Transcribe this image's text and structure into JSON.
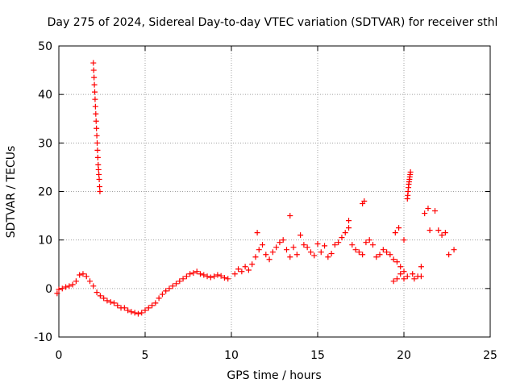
{
  "chart_data": {
    "type": "scatter",
    "title": "Day 275 of 2024, Sidereal Day-to-day VTEC variation (SDTVAR) for receiver sthl",
    "xlabel": "GPS time / hours",
    "ylabel": "SDTVAR / TECUs",
    "xlim": [
      0,
      25
    ],
    "ylim": [
      -10,
      50
    ],
    "xticks": [
      0,
      5,
      10,
      15,
      20,
      25
    ],
    "yticks": [
      -10,
      0,
      10,
      20,
      30,
      40,
      50
    ],
    "xtick_labels": [
      "0",
      "5",
      "10",
      "15",
      "20",
      "25"
    ],
    "ytick_labels": [
      "-10",
      "0",
      "10",
      "20",
      "30",
      "40",
      "50"
    ],
    "grid": true,
    "marker": "plus",
    "series_color": "#ff0000",
    "series": [
      {
        "name": "main",
        "x": [
          -0.1,
          0.0,
          0.2,
          0.4,
          0.6,
          0.8,
          1.0,
          1.2,
          1.4,
          1.6,
          1.8,
          2.0,
          2.2,
          2.4,
          2.6,
          2.8,
          3.0,
          3.2,
          3.4,
          3.6,
          3.8,
          4.0,
          4.2,
          4.4,
          4.6,
          4.8,
          5.0,
          5.2,
          5.4,
          5.6,
          5.8,
          6.0,
          6.2,
          6.4,
          6.6,
          6.8,
          7.0,
          7.2,
          7.4,
          7.6,
          7.8,
          8.0,
          8.2,
          8.4,
          8.6,
          8.8,
          9.0,
          9.2,
          9.4,
          9.6,
          9.8
        ],
        "y": [
          -1.0,
          -0.2,
          0.0,
          0.3,
          0.5,
          0.8,
          1.5,
          2.8,
          3.0,
          2.5,
          1.5,
          0.5,
          -0.8,
          -1.5,
          -2.0,
          -2.5,
          -2.8,
          -3.0,
          -3.5,
          -4.0,
          -4.0,
          -4.5,
          -4.8,
          -5.0,
          -5.2,
          -5.0,
          -4.5,
          -4.0,
          -3.5,
          -3.0,
          -2.0,
          -1.2,
          -0.5,
          0.0,
          0.5,
          1.0,
          1.5,
          2.0,
          2.5,
          3.0,
          3.2,
          3.5,
          3.0,
          2.8,
          2.5,
          2.3,
          2.5,
          2.8,
          2.6,
          2.2,
          2.0
        ]
      },
      {
        "name": "spike-early",
        "x": [
          2.0,
          2.02,
          2.04,
          2.06,
          2.08,
          2.1,
          2.12,
          2.14,
          2.16,
          2.18,
          2.2,
          2.22,
          2.24,
          2.26,
          2.28,
          2.3,
          2.32,
          2.34,
          2.36,
          2.38
        ],
        "y": [
          46.5,
          45,
          43.5,
          42,
          40.5,
          39,
          37.5,
          36,
          34.5,
          33,
          31.5,
          30,
          28.5,
          27,
          25.5,
          24.5,
          23.5,
          22.5,
          21,
          20
        ]
      },
      {
        "name": "cluster-10-15",
        "x": [
          10.2,
          10.4,
          10.6,
          10.8,
          11.0,
          11.2,
          11.4,
          11.6,
          11.8,
          12.0,
          12.2,
          12.4,
          12.6,
          12.8,
          13.0,
          13.2,
          13.4,
          13.6,
          13.8,
          14.0,
          14.2,
          14.4,
          14.6,
          14.8,
          15.0,
          15.2,
          15.4,
          15.6,
          15.8
        ],
        "y": [
          3.0,
          4.0,
          3.5,
          4.5,
          3.8,
          5.0,
          6.5,
          8.0,
          9.0,
          7.0,
          6.0,
          7.5,
          8.5,
          9.5,
          10.0,
          8.0,
          6.5,
          8.5,
          7.0,
          11.0,
          9.0,
          8.5,
          7.5,
          6.8,
          9.2,
          7.5,
          8.8,
          6.5,
          7.2
        ]
      },
      {
        "name": "cluster-15-20",
        "x": [
          16.0,
          16.2,
          16.4,
          16.6,
          16.8,
          17.0,
          17.2,
          17.4,
          17.6,
          17.8,
          18.0,
          18.2,
          18.4,
          18.6,
          18.8,
          19.0,
          19.2,
          19.4,
          19.6,
          19.8,
          20.0
        ],
        "y": [
          9.0,
          9.5,
          10.5,
          11.5,
          12.5,
          9.0,
          8.0,
          7.5,
          7.0,
          9.5,
          10.0,
          9.0,
          6.5,
          7.0,
          8.0,
          7.5,
          7.0,
          6.0,
          5.5,
          4.5,
          3.5
        ]
      },
      {
        "name": "scattered-late",
        "x": [
          11.5,
          13.4,
          16.8,
          17.6,
          17.7,
          19.5,
          19.7,
          20.0,
          20.5,
          20.8,
          21.0,
          21.2,
          21.4,
          21.5,
          21.8,
          22.0,
          22.2,
          22.4,
          22.6,
          22.9
        ],
        "y": [
          11.5,
          15.0,
          14.0,
          17.5,
          18.0,
          11.5,
          12.5,
          10.0,
          3.0,
          2.5,
          4.5,
          15.5,
          16.5,
          12.0,
          16.0,
          12.0,
          11.0,
          11.5,
          7.0,
          8.0
        ]
      },
      {
        "name": "spike-late",
        "x": [
          20.2,
          20.22,
          20.24,
          20.26,
          20.28,
          20.3,
          20.32,
          20.34,
          20.36,
          20.38
        ],
        "y": [
          18.5,
          19.2,
          20.0,
          20.8,
          21.5,
          22.0,
          22.5,
          23.0,
          23.5,
          24.0
        ]
      },
      {
        "name": "low-late",
        "x": [
          19.4,
          19.6,
          19.8,
          20.0,
          20.2,
          20.6,
          21.0
        ],
        "y": [
          1.5,
          2.0,
          3.0,
          2.0,
          2.5,
          2.0,
          2.5
        ]
      }
    ]
  }
}
